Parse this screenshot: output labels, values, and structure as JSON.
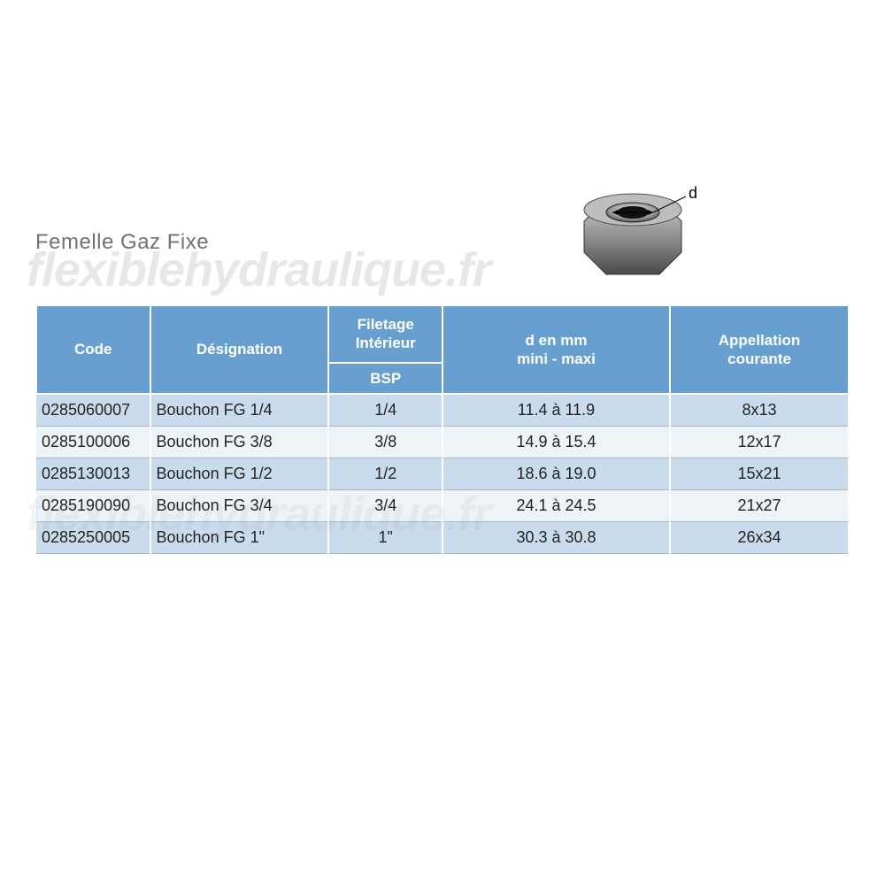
{
  "title": "Femelle Gaz Fixe",
  "watermark": "flexiblehydraulique.fr",
  "illustration_label": "d",
  "table": {
    "type": "table",
    "header_bg": "#679fd0",
    "header_fg": "#ffffff",
    "row_odd_bg": "#c9dced",
    "row_even_bg": "#eef3f8",
    "border_color": "#ffffff",
    "text_color": "#222222",
    "font_size_header": 17,
    "font_size_body": 18,
    "columns": [
      {
        "key": "code",
        "label": "Code",
        "align": "left",
        "width_pct": 14
      },
      {
        "key": "designation",
        "label": "Désignation",
        "align": "left",
        "width_pct": 22
      },
      {
        "key": "filetage",
        "label": "Filetage\nIntérieur",
        "sub": "BSP",
        "align": "center",
        "width_pct": 14
      },
      {
        "key": "d_mm",
        "label": "d  en mm\nmini - maxi",
        "align": "center",
        "width_pct": 28
      },
      {
        "key": "appellation",
        "label": "Appellation\ncourante",
        "align": "center",
        "width_pct": 22
      }
    ],
    "headers": {
      "code": "Code",
      "designation": "Désignation",
      "filetage_top": "Filetage Intérieur",
      "filetage_sub": "BSP",
      "d_mm": "d  en mm mini - maxi",
      "d_mm_line1": "d  en mm",
      "d_mm_line2": "mini - maxi",
      "appellation": "Appellation courante",
      "appellation_line1": "Appellation",
      "appellation_line2": "courante"
    },
    "rows": [
      {
        "code": "0285060007",
        "designation": "Bouchon FG 1/4",
        "filetage": "1/4",
        "d_mm": "11.4 à 11.9",
        "appellation": "8x13"
      },
      {
        "code": "0285100006",
        "designation": "Bouchon FG 3/8",
        "filetage": "3/8",
        "d_mm": "14.9 à 15.4",
        "appellation": "12x17"
      },
      {
        "code": "0285130013",
        "designation": "Bouchon FG 1/2",
        "filetage": "1/2",
        "d_mm": "18.6 à 19.0",
        "appellation": "15x21"
      },
      {
        "code": "0285190090",
        "designation": "Bouchon FG 3/4",
        "filetage": "3/4",
        "d_mm": "24.1 à 24.5",
        "appellation": "21x27"
      },
      {
        "code": "0285250005",
        "designation": "Bouchon FG 1\"",
        "filetage": "1\"",
        "d_mm": "30.3 à 30.8",
        "appellation": "26x34"
      }
    ]
  }
}
